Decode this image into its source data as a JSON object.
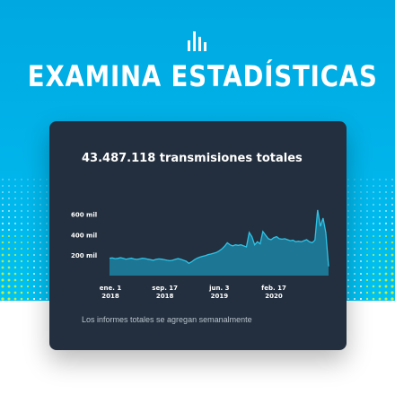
{
  "headline": "EXAMINA ESTADÍSTICAS",
  "card": {
    "title": "43.487.118 transmisiones totales",
    "footnote": "Los informes totales se agregan semanalmente"
  },
  "icons": {
    "logo": "amazon-music-bars-icon"
  },
  "colors": {
    "hero_background": "#00a8e1",
    "card_background": "#232f3e",
    "line": "#2ec3e6",
    "area_fill": "#1c8fb0",
    "dot_accent": "#c8f03c"
  },
  "chart_data": {
    "type": "area",
    "title": "43.487.118 transmisiones totales",
    "xlabel": "",
    "ylabel": "",
    "ylim": [
      0,
      700000
    ],
    "y_ticks": [
      {
        "value": 200000,
        "label": "200 mil"
      },
      {
        "value": 400000,
        "label": "400 mil"
      },
      {
        "value": 600000,
        "label": "600 mil"
      }
    ],
    "x_ticks": [
      {
        "line1": "ene. 1",
        "line2": "2018"
      },
      {
        "line1": "sep. 17",
        "line2": "2018"
      },
      {
        "line1": "jun. 3",
        "line2": "2019"
      },
      {
        "line1": "feb. 17",
        "line2": "2020"
      }
    ],
    "grid": false,
    "legend": "none",
    "series": [
      {
        "values": [
          170000,
          172000,
          165000,
          168000,
          175000,
          168000,
          160000,
          165000,
          170000,
          162000,
          158000,
          163000,
          170000,
          166000,
          160000,
          155000,
          150000,
          158000,
          163000,
          160000,
          155000,
          150000,
          145000,
          150000,
          158000,
          165000,
          160000,
          150000,
          140000,
          120000,
          135000,
          155000,
          170000,
          180000,
          188000,
          195000,
          205000,
          210000,
          218000,
          225000,
          240000,
          260000,
          285000,
          320000,
          300000,
          290000,
          300000,
          295000,
          300000,
          290000,
          280000,
          420000,
          380000,
          300000,
          330000,
          310000,
          430000,
          395000,
          360000,
          350000,
          370000,
          380000,
          360000,
          355000,
          360000,
          350000,
          340000,
          345000,
          330000,
          335000,
          330000,
          340000,
          350000,
          330000,
          320000,
          345000,
          640000,
          480000,
          560000,
          420000,
          90000
        ]
      }
    ]
  }
}
